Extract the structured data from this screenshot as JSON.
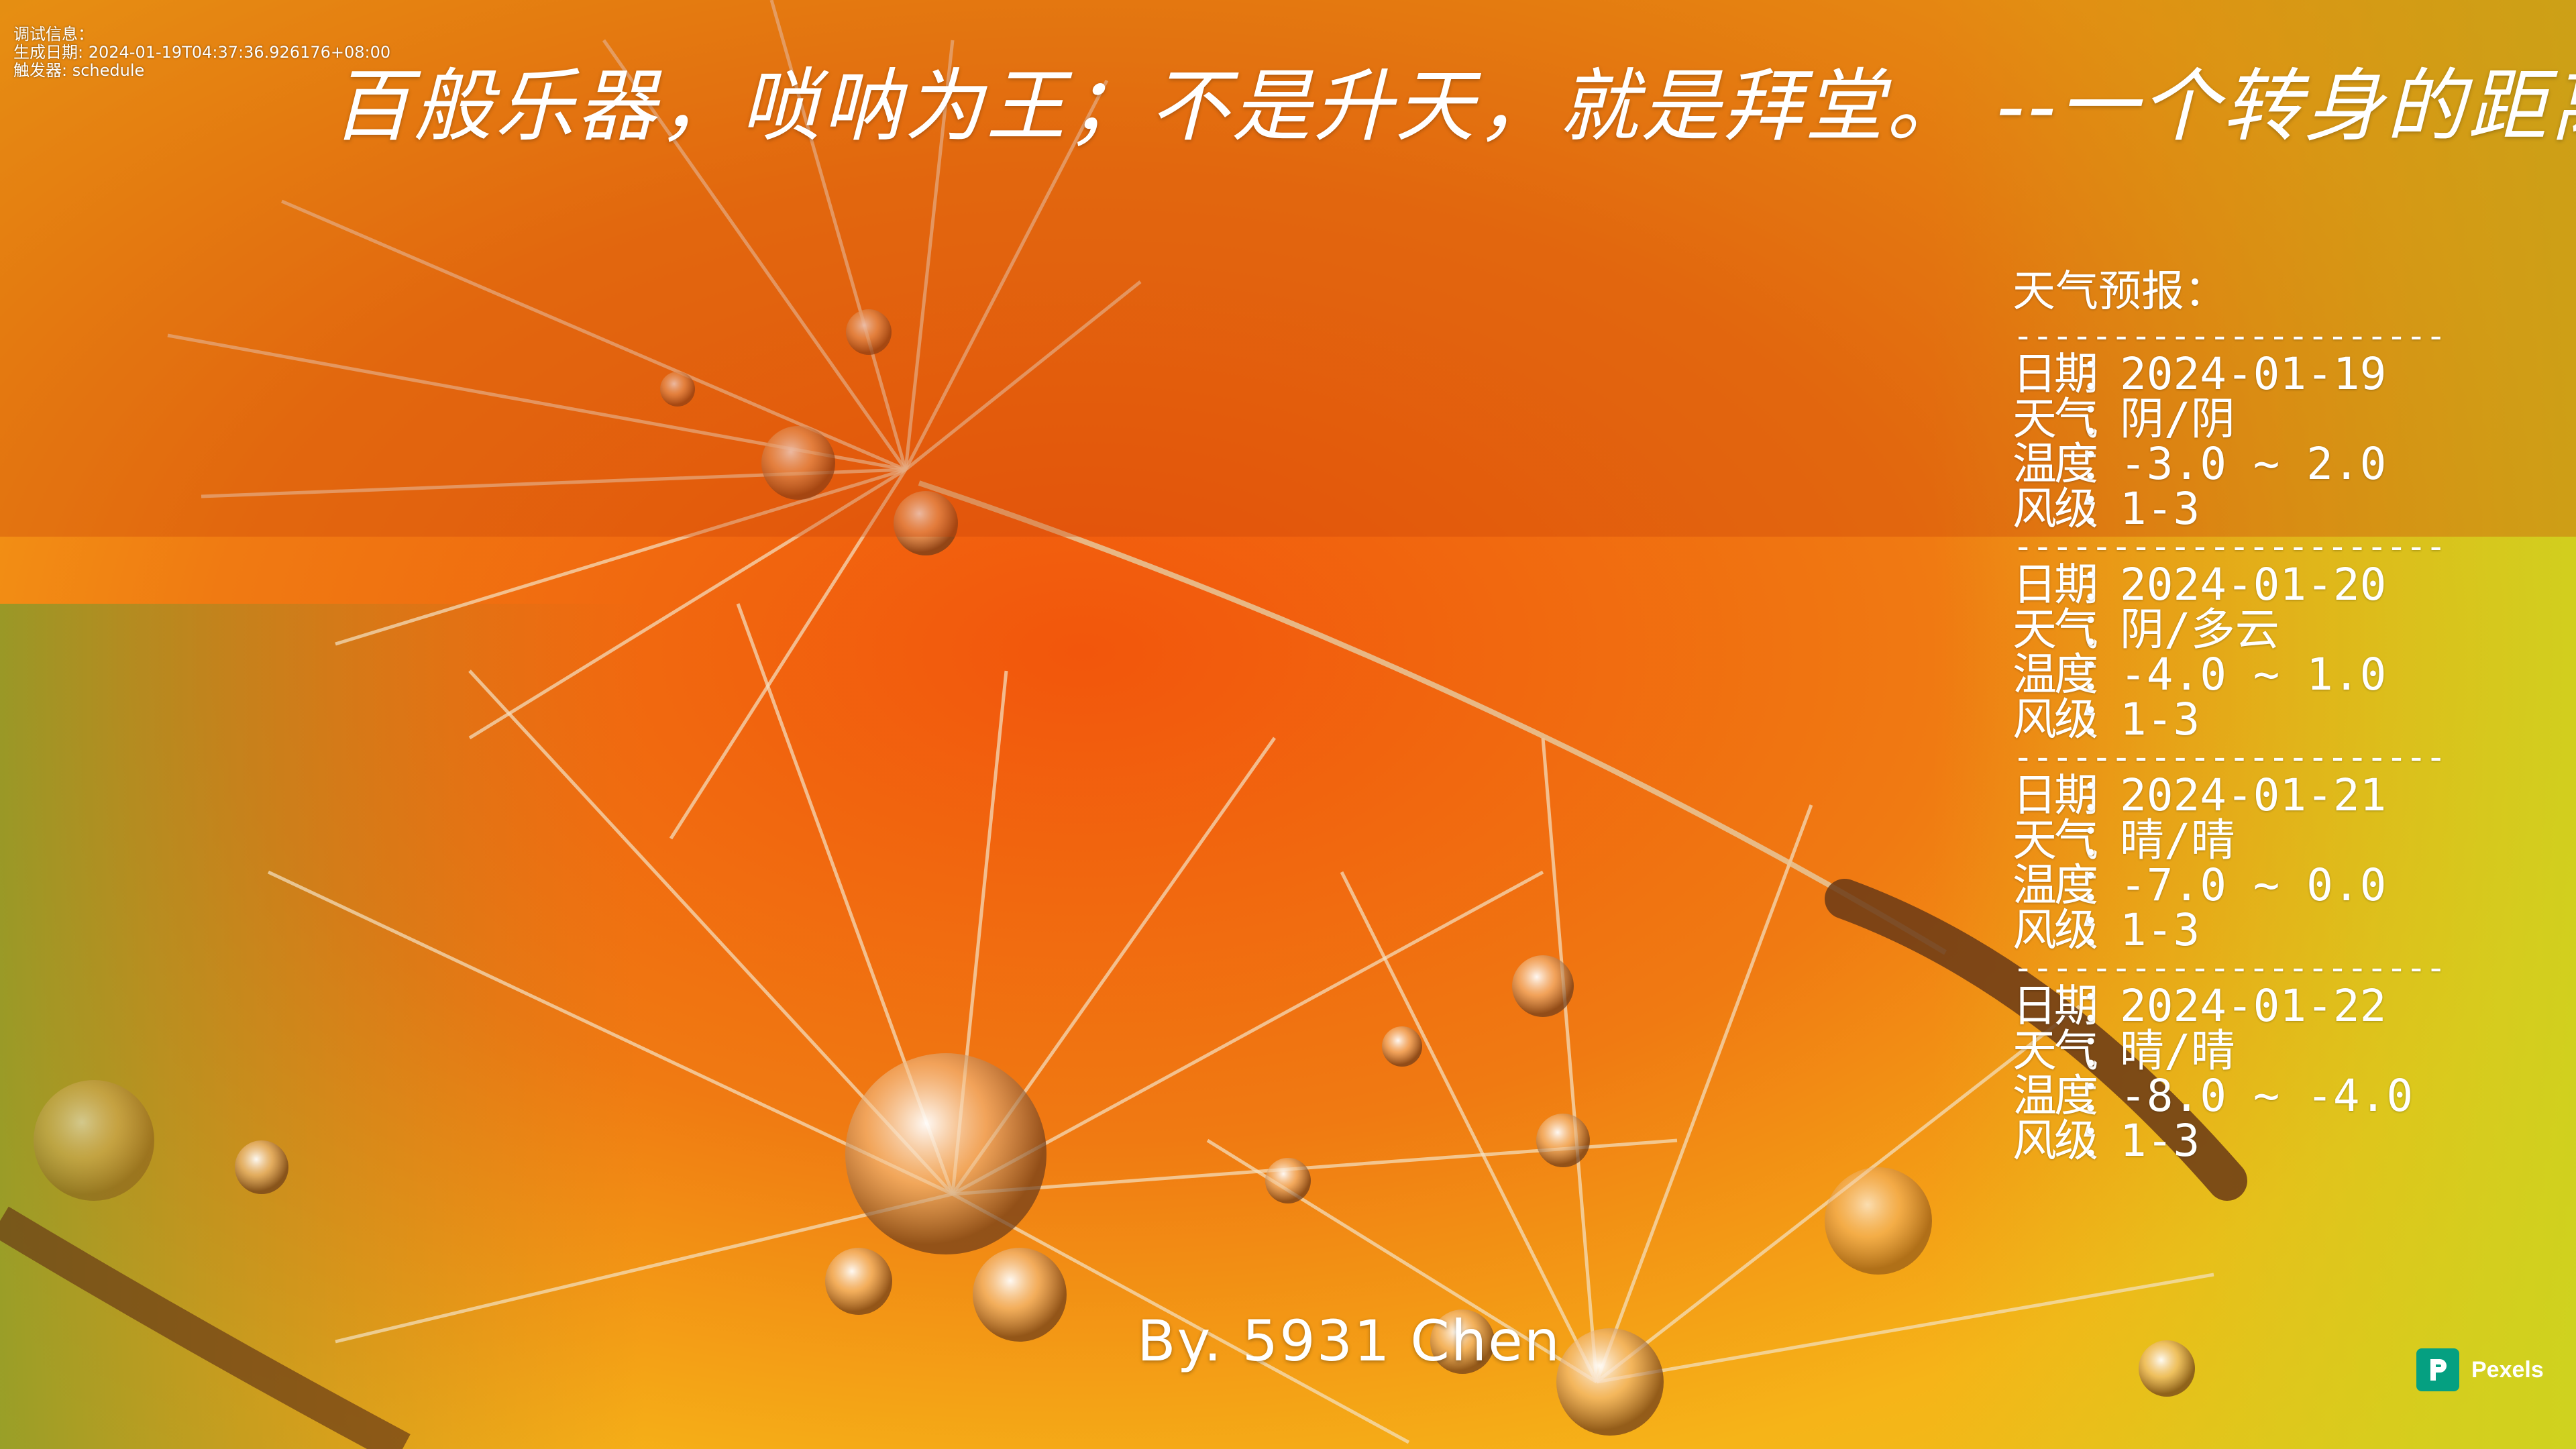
{
  "debug": {
    "line1": "调试信息：",
    "line2": "生成日期: 2024-01-19T04:37:36.926176+08:00",
    "line3": "触发器: schedule"
  },
  "title": "百般乐器，唢呐为王；不是升天，就是拜堂。  --一个转身的距离",
  "weather": {
    "heading": "天气预报：",
    "separator": "--------------------------------",
    "labels": {
      "date": "日期",
      "weather": "天气",
      "temp": "温度",
      "wind": "风级",
      "colon": "："
    },
    "days": [
      {
        "date": "2024-01-19",
        "weather": "阴/阴",
        "temp": "-3.0 ~ 2.0",
        "wind": "1-3"
      },
      {
        "date": "2024-01-20",
        "weather": "阴/多云",
        "temp": "-4.0 ~ 1.0",
        "wind": "1-3"
      },
      {
        "date": "2024-01-21",
        "weather": "晴/晴",
        "temp": "-7.0 ~ 0.0",
        "wind": "1-3"
      },
      {
        "date": "2024-01-22",
        "weather": "晴/晴",
        "temp": "-8.0 ~ -4.0",
        "wind": "1-3"
      }
    ]
  },
  "byline": "By. 5931 Chen",
  "pexels": {
    "label": "Pexels",
    "icon": "pexels-logo-icon"
  },
  "colors": {
    "accent": "#e86a14",
    "brand": "#05a081"
  }
}
